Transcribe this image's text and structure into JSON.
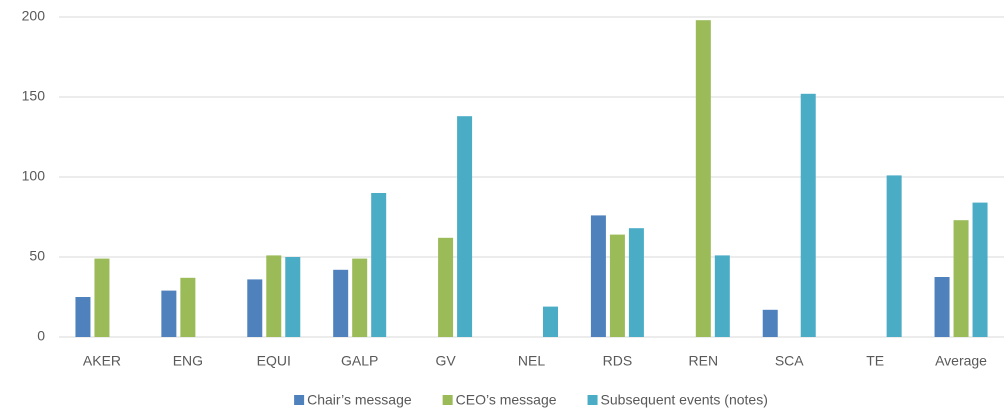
{
  "chart_data": {
    "type": "bar",
    "categories": [
      "AKER",
      "ENG",
      "EQUI",
      "GALP",
      "GV",
      "NEL",
      "RDS",
      "REN",
      "SCA",
      "TE",
      "Average"
    ],
    "series": [
      {
        "name": "Chair’s message",
        "color": "#4f81bd",
        "values": [
          25,
          29,
          36,
          42,
          null,
          null,
          76,
          null,
          17,
          null,
          37.5
        ]
      },
      {
        "name": "CEO’s message",
        "color": "#9bbb59",
        "values": [
          49,
          37,
          51,
          49,
          62,
          null,
          64,
          198,
          null,
          null,
          73
        ]
      },
      {
        "name": "Subsequent events (notes)",
        "color": "#4bacc6",
        "values": [
          null,
          null,
          50,
          90,
          138,
          19,
          68,
          51,
          152,
          101,
          84
        ]
      }
    ],
    "ylim": [
      0,
      200
    ],
    "yticks": [
      0,
      50,
      100,
      150,
      200
    ],
    "grid": true,
    "legend": "bottom"
  }
}
